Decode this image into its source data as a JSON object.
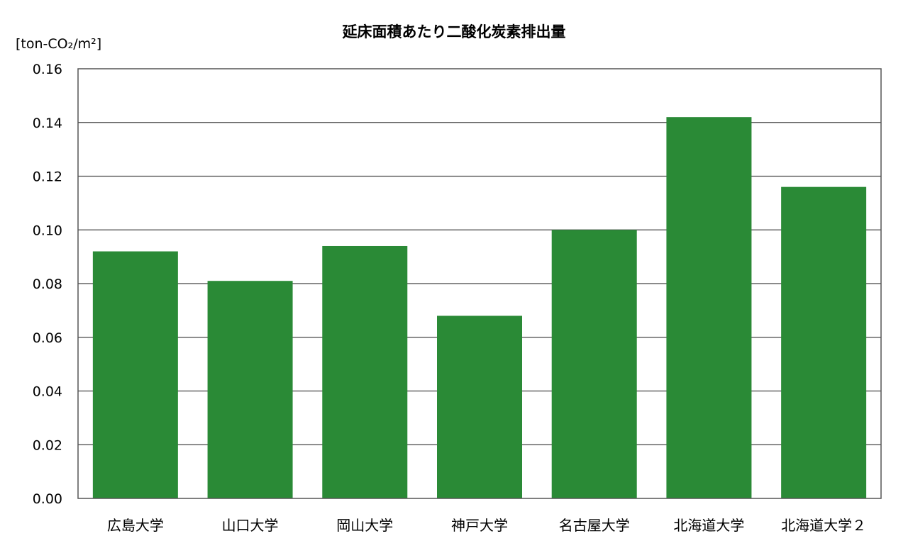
{
  "chart_data": {
    "type": "bar",
    "title": "延床面積あたり二酸化炭素排出量",
    "ylabel": "[ton-CO₂/m²]",
    "xlabel": "",
    "categories": [
      "広島大学",
      "山口大学",
      "岡山大学",
      "神戸大学",
      "名古屋大学",
      "北海道大学",
      "北海道大学２"
    ],
    "values": [
      0.092,
      0.081,
      0.094,
      0.068,
      0.1,
      0.142,
      0.116
    ],
    "ylim": [
      0,
      0.16
    ],
    "yticks": [
      "0.00",
      "0.02",
      "0.04",
      "0.06",
      "0.08",
      "0.10",
      "0.12",
      "0.14",
      "0.16"
    ],
    "grid": true,
    "legend": "none",
    "bar_color": "#2a8a36"
  }
}
